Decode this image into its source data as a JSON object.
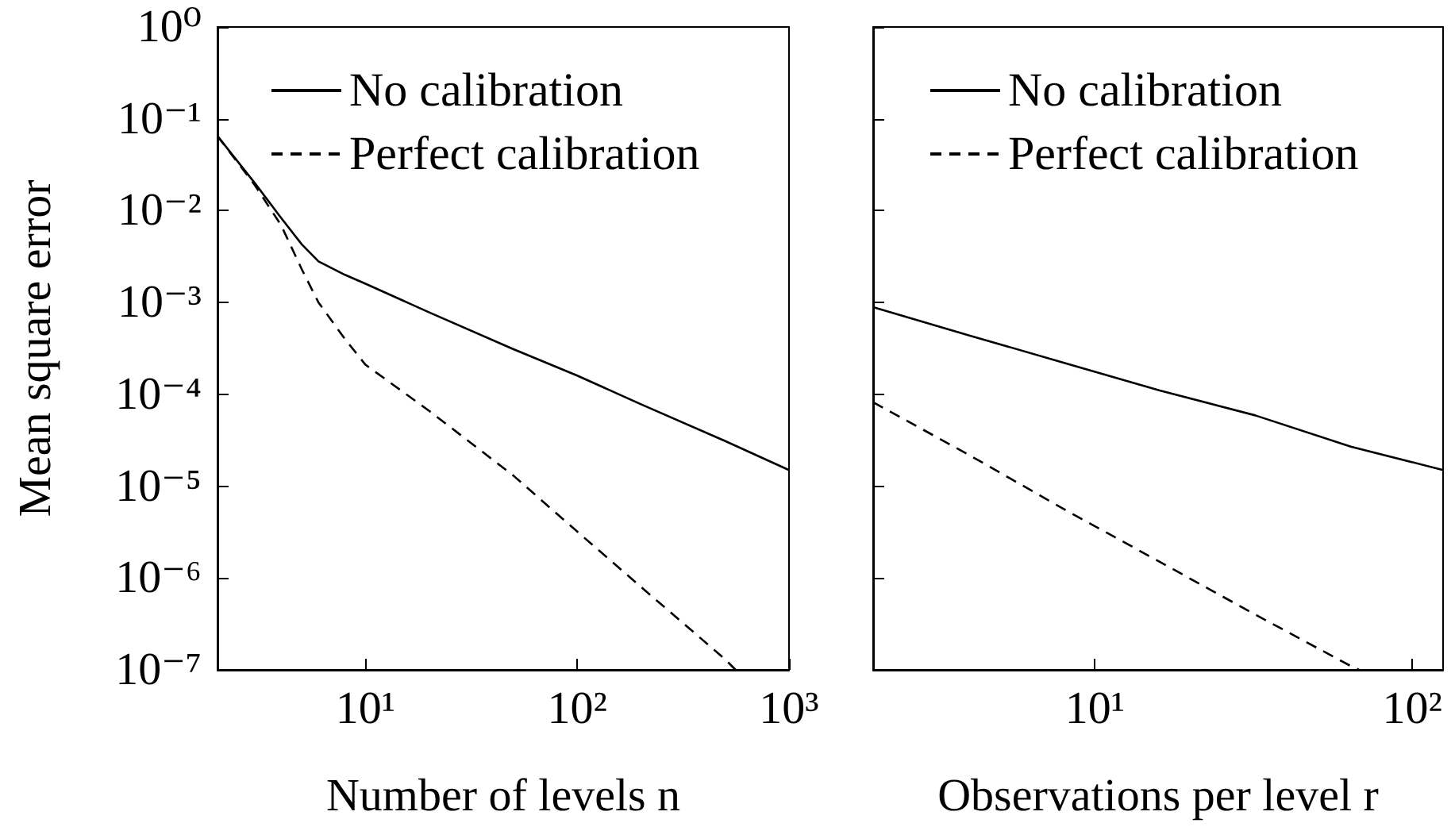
{
  "chart_data": [
    {
      "type": "line",
      "xlabel": "Number of levels n",
      "ylabel": "Mean square error",
      "log": "xy",
      "grid": false,
      "legend": "top left",
      "marker": "none",
      "xlim": [
        2,
        1000
      ],
      "xticks": [
        {
          "value": 10,
          "label": "10¹"
        },
        {
          "value": 100,
          "label": "10²"
        },
        {
          "value": 1000,
          "label": "10³"
        }
      ],
      "ylim": [
        1e-07,
        1
      ],
      "yticks": [
        {
          "value": 1e-07,
          "label": "10⁻⁷"
        },
        {
          "value": 1e-06,
          "label": "10⁻⁶"
        },
        {
          "value": 1e-05,
          "label": "10⁻⁵"
        },
        {
          "value": 0.0001,
          "label": "10⁻⁴"
        },
        {
          "value": 0.001,
          "label": "10⁻³"
        },
        {
          "value": 0.01,
          "label": "10⁻²"
        },
        {
          "value": 0.1,
          "label": "10⁻¹"
        },
        {
          "value": 1,
          "label": "10⁰"
        }
      ],
      "series": [
        {
          "name": "No calibration",
          "color": "#000000",
          "line_style": "solid",
          "x": [
            2,
            3,
            4,
            5,
            6,
            8,
            10,
            20,
            50,
            100,
            200,
            500,
            1000
          ],
          "values": [
            0.065,
            0.02,
            0.0083,
            0.0043,
            0.0028,
            0.002,
            0.0016,
            0.00078,
            0.00031,
            0.00016,
            7.8e-05,
            3.1e-05,
            1.5e-05
          ]
        },
        {
          "name": "Perfect calibration",
          "color": "#000000",
          "line_style": "dashed",
          "x": [
            2,
            3,
            4,
            5,
            6,
            8,
            10,
            20,
            50,
            100,
            200,
            500,
            560
          ],
          "values": [
            0.065,
            0.019,
            0.0069,
            0.0023,
            0.001,
            0.0004,
            0.00021,
            6.6e-05,
            1.3e-05,
            3.2e-06,
            8e-07,
            1.3e-07,
            1e-07
          ]
        }
      ]
    },
    {
      "type": "line",
      "xlabel": "Observations per level r",
      "log": "xy",
      "grid": false,
      "legend": "top left",
      "marker": "none",
      "tick_labels": "x",
      "xlim": [
        2,
        125
      ],
      "xticks": [
        {
          "value": 10,
          "label": "10¹"
        },
        {
          "value": 100,
          "label": "10²"
        }
      ],
      "ylim": [
        1e-07,
        1
      ],
      "yticks": [
        {
          "value": 1e-07,
          "label": null
        },
        {
          "value": 1e-06,
          "label": null
        },
        {
          "value": 1e-05,
          "label": null
        },
        {
          "value": 0.0001,
          "label": null
        },
        {
          "value": 0.001,
          "label": null
        },
        {
          "value": 0.01,
          "label": null
        },
        {
          "value": 0.1,
          "label": null
        },
        {
          "value": 1,
          "label": null
        }
      ],
      "series": [
        {
          "name": "No calibration",
          "color": "#000000",
          "line_style": "solid",
          "x": [
            2,
            4,
            8,
            16,
            32,
            64,
            125
          ],
          "values": [
            0.00089,
            0.00044,
            0.00022,
            0.00011,
            5.9e-05,
            2.7e-05,
            1.5e-05
          ]
        },
        {
          "name": "Perfect calibration",
          "color": "#000000",
          "line_style": "dashed",
          "x": [
            2,
            4,
            8,
            16,
            32,
            64,
            68
          ],
          "values": [
            8.2e-05,
            2.2e-05,
            5.6e-06,
            1.5e-06,
            4e-07,
            1.1e-07,
            1e-07
          ]
        }
      ]
    }
  ]
}
